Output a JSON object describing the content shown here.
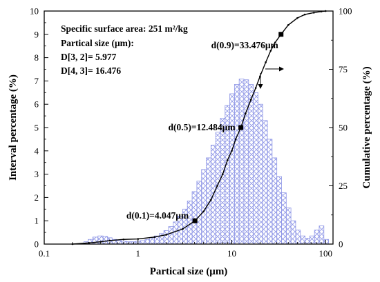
{
  "chart_data": {
    "type": "bar",
    "xlabel": "Partical size (μm)",
    "ylabel_left": "Interval percentage (%)",
    "ylabel_right": "Cumulative percentage (%)",
    "x_scale": "log",
    "xlim": [
      0.1,
      120
    ],
    "x_ticks": [
      0.1,
      1,
      10,
      100
    ],
    "x_tick_labels": [
      "0.1",
      "1",
      "10",
      "100"
    ],
    "y_left_lim": [
      0,
      10
    ],
    "y_left_ticks": [
      "0",
      "1",
      "2",
      "3",
      "4",
      "5",
      "6",
      "7",
      "8",
      "9",
      "10"
    ],
    "y_right_lim": [
      0,
      100
    ],
    "y_right_ticks": [
      "0",
      "25",
      "50",
      "75",
      "100"
    ],
    "annotations": {
      "surface_area": "Specific surface area: 251 m²/kg",
      "particle_size_heading": "Partical size (μm):",
      "d32": "D[3, 2]= 5.977",
      "d43": "D[4, 3]= 16.476"
    },
    "interval_bars": [
      {
        "x": 0.25,
        "y": 0.02
      },
      {
        "x": 0.28,
        "y": 0.1
      },
      {
        "x": 0.31,
        "y": 0.2
      },
      {
        "x": 0.35,
        "y": 0.3
      },
      {
        "x": 0.4,
        "y": 0.35
      },
      {
        "x": 0.45,
        "y": 0.33
      },
      {
        "x": 0.5,
        "y": 0.27
      },
      {
        "x": 0.56,
        "y": 0.2
      },
      {
        "x": 0.63,
        "y": 0.15
      },
      {
        "x": 0.71,
        "y": 0.12
      },
      {
        "x": 0.8,
        "y": 0.1
      },
      {
        "x": 0.89,
        "y": 0.1
      },
      {
        "x": 1.0,
        "y": 0.12
      },
      {
        "x": 1.12,
        "y": 0.15
      },
      {
        "x": 1.26,
        "y": 0.2
      },
      {
        "x": 1.41,
        "y": 0.27
      },
      {
        "x": 1.59,
        "y": 0.35
      },
      {
        "x": 1.78,
        "y": 0.45
      },
      {
        "x": 2.0,
        "y": 0.58
      },
      {
        "x": 2.24,
        "y": 0.75
      },
      {
        "x": 2.52,
        "y": 0.95
      },
      {
        "x": 2.83,
        "y": 1.2
      },
      {
        "x": 3.17,
        "y": 1.5
      },
      {
        "x": 3.56,
        "y": 1.85
      },
      {
        "x": 4.0,
        "y": 2.25
      },
      {
        "x": 4.49,
        "y": 2.7
      },
      {
        "x": 5.04,
        "y": 3.2
      },
      {
        "x": 5.66,
        "y": 3.7
      },
      {
        "x": 6.35,
        "y": 4.25
      },
      {
        "x": 7.13,
        "y": 4.8
      },
      {
        "x": 8.0,
        "y": 5.4
      },
      {
        "x": 8.98,
        "y": 5.95
      },
      {
        "x": 10.08,
        "y": 6.45
      },
      {
        "x": 11.31,
        "y": 6.85
      },
      {
        "x": 12.7,
        "y": 7.08
      },
      {
        "x": 14.25,
        "y": 7.05
      },
      {
        "x": 16.0,
        "y": 6.85
      },
      {
        "x": 17.96,
        "y": 6.5
      },
      {
        "x": 20.16,
        "y": 6.0
      },
      {
        "x": 22.63,
        "y": 5.3
      },
      {
        "x": 25.4,
        "y": 4.5
      },
      {
        "x": 28.51,
        "y": 3.7
      },
      {
        "x": 32.0,
        "y": 2.9
      },
      {
        "x": 35.92,
        "y": 2.2
      },
      {
        "x": 40.32,
        "y": 1.55
      },
      {
        "x": 45.25,
        "y": 1.0
      },
      {
        "x": 50.8,
        "y": 0.6
      },
      {
        "x": 57.02,
        "y": 0.35
      },
      {
        "x": 64.0,
        "y": 0.25
      },
      {
        "x": 71.84,
        "y": 0.35
      },
      {
        "x": 80.63,
        "y": 0.6
      },
      {
        "x": 90.51,
        "y": 0.78
      },
      {
        "x": 101.6,
        "y": 0.2
      }
    ],
    "cumulative_curve": [
      {
        "x": 0.2,
        "y": 0
      },
      {
        "x": 0.3,
        "y": 0.5
      },
      {
        "x": 0.4,
        "y": 1.0
      },
      {
        "x": 0.5,
        "y": 1.5
      },
      {
        "x": 0.7,
        "y": 2.0
      },
      {
        "x": 1.0,
        "y": 2.2
      },
      {
        "x": 1.5,
        "y": 3.0
      },
      {
        "x": 2.0,
        "y": 4.0
      },
      {
        "x": 3.0,
        "y": 6.5
      },
      {
        "x": 4.047,
        "y": 10
      },
      {
        "x": 5.0,
        "y": 14
      },
      {
        "x": 6.0,
        "y": 19
      },
      {
        "x": 7.0,
        "y": 25
      },
      {
        "x": 8.0,
        "y": 30
      },
      {
        "x": 9.0,
        "y": 36
      },
      {
        "x": 10.0,
        "y": 40
      },
      {
        "x": 11.0,
        "y": 45
      },
      {
        "x": 12.484,
        "y": 50
      },
      {
        "x": 14.0,
        "y": 56
      },
      {
        "x": 16.0,
        "y": 62
      },
      {
        "x": 18.0,
        "y": 67
      },
      {
        "x": 20.0,
        "y": 72
      },
      {
        "x": 23.0,
        "y": 78
      },
      {
        "x": 26.0,
        "y": 83
      },
      {
        "x": 29.0,
        "y": 86.5
      },
      {
        "x": 33.476,
        "y": 90
      },
      {
        "x": 40.0,
        "y": 94
      },
      {
        "x": 50.0,
        "y": 97
      },
      {
        "x": 60.0,
        "y": 98.5
      },
      {
        "x": 75.0,
        "y": 99.3
      },
      {
        "x": 90.0,
        "y": 99.8
      },
      {
        "x": 100.0,
        "y": 100
      }
    ],
    "percentile_markers": [
      {
        "label": "d(0.1)=4.047μm",
        "x": 4.047,
        "y": 10
      },
      {
        "label": "d(0.5)=12.484μm",
        "x": 12.484,
        "y": 50
      },
      {
        "label": "d(0.9)=33.476μm",
        "x": 33.476,
        "y": 90
      }
    ]
  }
}
